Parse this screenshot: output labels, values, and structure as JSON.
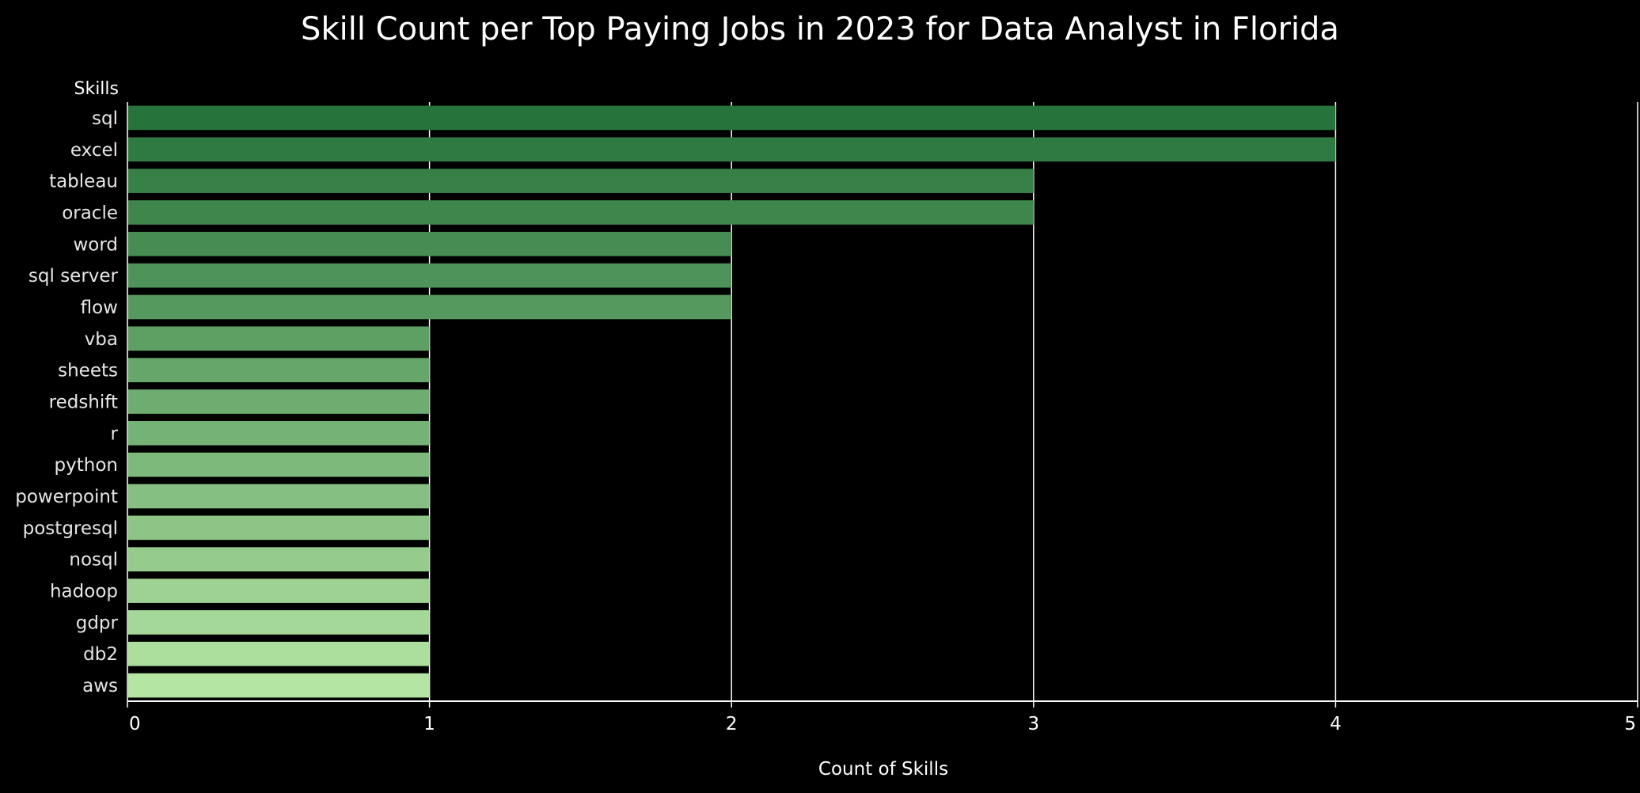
{
  "chart_data": {
    "type": "bar",
    "orientation": "horizontal",
    "title": "Skill Count per Top Paying Jobs in 2023 for Data Analyst in Florida",
    "ylabel": "Skills",
    "xlabel": "Count of Skills",
    "categories": [
      "sql",
      "excel",
      "tableau",
      "oracle",
      "word",
      "sql server",
      "flow",
      "vba",
      "sheets",
      "redshift",
      "r",
      "python",
      "powerpoint",
      "postgresql",
      "nosql",
      "hadoop",
      "gdpr",
      "db2",
      "aws"
    ],
    "values": [
      4,
      4,
      3,
      3,
      2,
      2,
      2,
      1,
      1,
      1,
      1,
      1,
      1,
      1,
      1,
      1,
      1,
      1,
      1
    ],
    "xlim": [
      0,
      5
    ],
    "xticks": [
      "0",
      "1",
      "2",
      "3",
      "4",
      "5"
    ],
    "grid": "vertical",
    "legend": "none",
    "colors": {
      "background": "#000000",
      "text": "#ffffff",
      "gridline": "#ffffff",
      "bar_dark": "#27733c",
      "bar_light": "#b4e5a3"
    }
  }
}
